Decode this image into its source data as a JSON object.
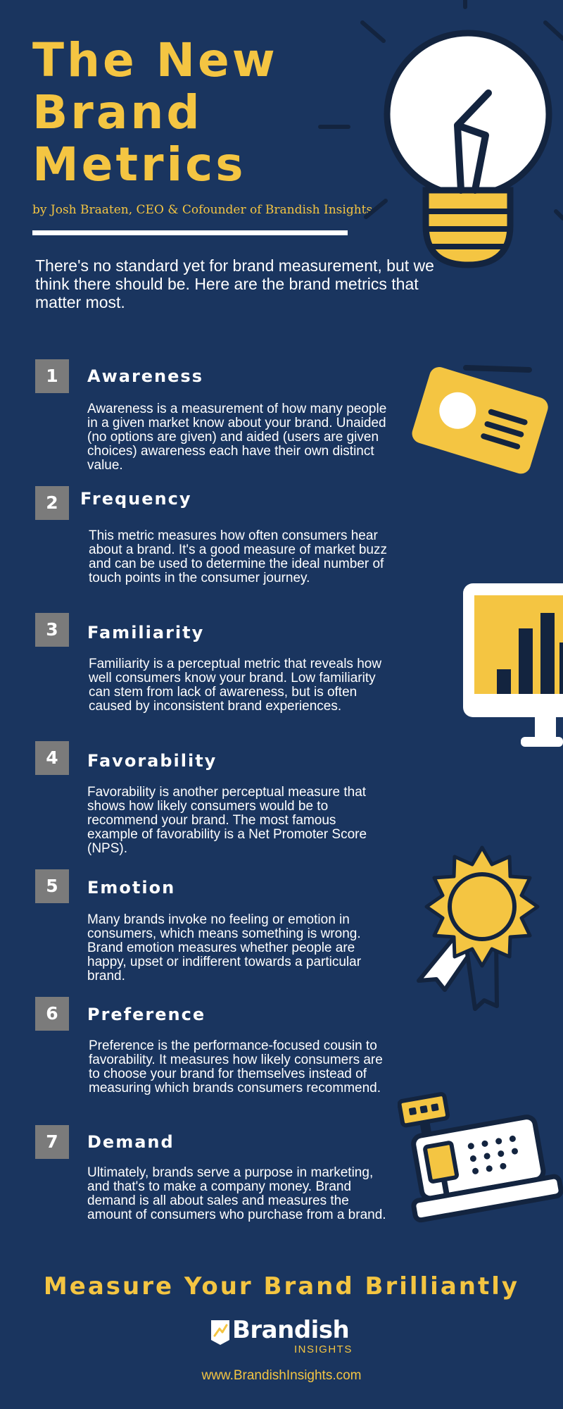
{
  "header": {
    "title_lines": [
      "The New",
      "Brand",
      "Metrics"
    ],
    "byline": "by Josh Braaten, CEO & Cofounder of Brandish Insights",
    "intro": "There's no standard yet for brand measurement, but we think there should be. Here are the brand metrics that matter most."
  },
  "metrics": [
    {
      "number": "1",
      "title": "Awareness",
      "description": "Awareness is a measurement of how many people in a given market know about your brand. Unaided (no options are given) and aided (users are given choices) awareness each have their own distinct value."
    },
    {
      "number": "2",
      "title": "Frequency",
      "description": "This metric measures how often consumers hear about a brand. It's a good measure of market buzz and can be used to determine the ideal number of touch points in the consumer journey."
    },
    {
      "number": "3",
      "title": "Familiarity",
      "description": "Familiarity is a perceptual metric that reveals how well consumers know your brand. Low familiarity can stem from lack of awareness, but is often caused by inconsistent brand experiences."
    },
    {
      "number": "4",
      "title": "Favorability",
      "description": "Favorability is another perceptual measure that shows how likely consumers would be to recommend your brand. The most famous example of favorability is a Net Promoter Score (NPS)."
    },
    {
      "number": "5",
      "title": "Emotion",
      "description": "Many brands invoke no feeling or emotion in consumers, which means something is wrong. Brand emotion measures whether people are happy, upset or indifferent towards a particular brand."
    },
    {
      "number": "6",
      "title": "Preference",
      "description": "Preference is the performance-focused cousin to favorability. It measures how likely consumers are to choose your brand for themselves instead of measuring which brands consumers recommend."
    },
    {
      "number": "7",
      "title": "Demand",
      "description": "Ultimately, brands serve a purpose in marketing, and that's to make a company money. Brand demand is all about sales and measures the amount of consumers who purchase from a brand."
    }
  ],
  "footer": {
    "tagline": "Measure Your Brand Brilliantly",
    "logo_word": "Brandish",
    "logo_sub": "INSIGHTS",
    "website": "www.BrandishInsights.com"
  },
  "icons": [
    "lightbulb-icon",
    "id-card-icon",
    "monitor-chart-icon",
    "award-ribbon-icon",
    "cash-register-icon"
  ],
  "colors": {
    "background": "#1a355f",
    "accent": "#f4c542",
    "number_box": "#7b7b7b",
    "text": "#ffffff"
  }
}
